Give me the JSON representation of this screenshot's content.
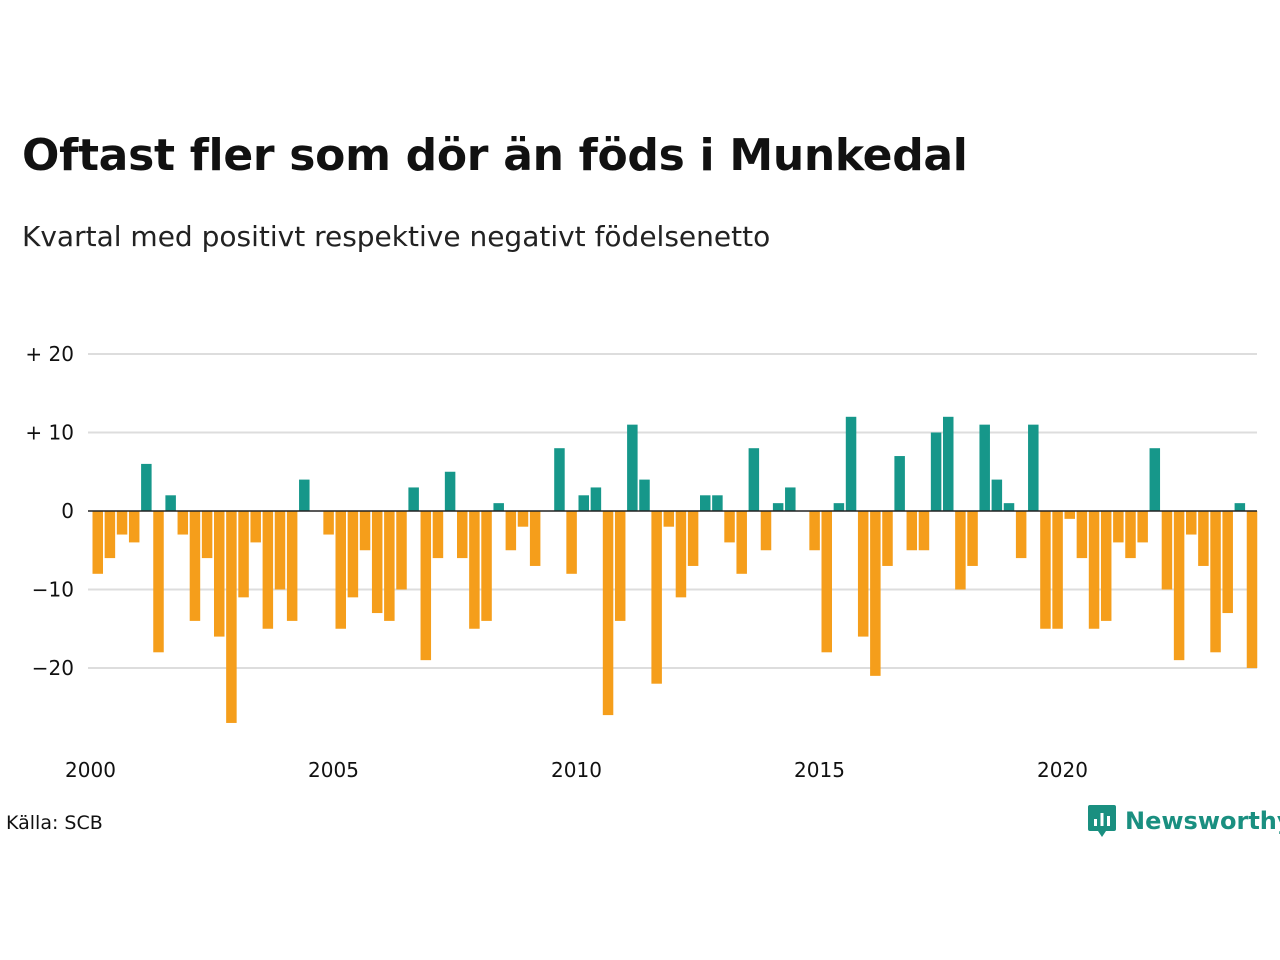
{
  "title": "Oftast fler som dör än föds i Munkedal",
  "subtitle": "Kvartal med positivt respektive negativt födelsenetto",
  "source": "Källa: SCB",
  "brand": "Newsworthy",
  "logo_icon": "newsworthy-chart-bubble-icon",
  "colors": {
    "positive": "#16978a",
    "negative": "#f59e1b",
    "grid": "#dddddd",
    "zero_line": "#222222",
    "brand": "#1a8f80"
  },
  "chart_data": {
    "type": "bar",
    "title": "Oftast fler som dör än föds i Munkedal",
    "subtitle": "Kvartal med positivt respektive negativt födelsenetto",
    "x_start": 2000,
    "periods_per_year": 4,
    "x_ticks": [
      "2000",
      "2005",
      "2010",
      "2015",
      "2020"
    ],
    "y_ticks": [
      {
        "value": 20,
        "label": "+ 20"
      },
      {
        "value": 10,
        "label": "+ 10"
      },
      {
        "value": 0,
        "label": "0"
      },
      {
        "value": -10,
        "label": "−10"
      },
      {
        "value": -20,
        "label": "−20"
      }
    ],
    "ylim": [
      -28,
      20
    ],
    "grid": true,
    "values": [
      -8,
      -6,
      -3,
      -4,
      6,
      -18,
      2,
      -3,
      -14,
      -6,
      -16,
      -27,
      -11,
      -4,
      -15,
      -10,
      -14,
      4,
      0,
      -3,
      -15,
      -11,
      -5,
      -13,
      -14,
      -10,
      3,
      -19,
      -6,
      5,
      -6,
      -15,
      -14,
      1,
      -5,
      -2,
      -7,
      0,
      8,
      -8,
      2,
      3,
      -26,
      -14,
      11,
      4,
      -22,
      -2,
      -11,
      -7,
      2,
      2,
      -4,
      -8,
      8,
      -5,
      1,
      3,
      0,
      -5,
      -18,
      1,
      12,
      -16,
      -21,
      -7,
      7,
      -5,
      -5,
      10,
      12,
      -10,
      -7,
      11,
      4,
      1,
      -6,
      11,
      -15,
      -15,
      -1,
      -6,
      -15,
      -14,
      -4,
      -6,
      -4,
      8,
      -10,
      -19,
      -3,
      -7,
      -18,
      -13,
      1,
      -20
    ]
  }
}
